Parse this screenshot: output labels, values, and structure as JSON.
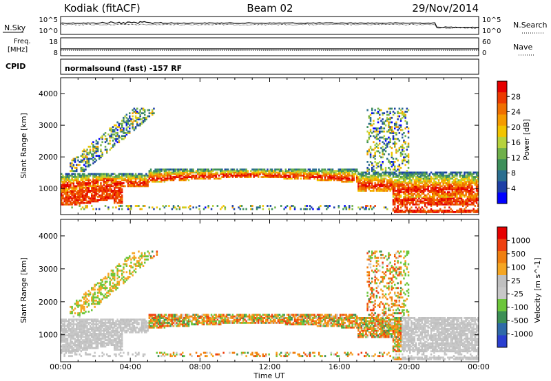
{
  "header": {
    "station": "Kodiak (fitACF)",
    "beam": "Beam 02",
    "date": "29/Nov/2014"
  },
  "top_panels": {
    "nsky_label": "N.Sky",
    "nsearch_label": "N.Search",
    "noise_ticks_left": [
      "10^5",
      "10^0"
    ],
    "noise_ticks_right": [
      "10^5",
      "10^0"
    ],
    "freq_label_1": "Freq.",
    "freq_label_2": "[MHz]",
    "freq_ticks": [
      "18",
      "8"
    ],
    "nave_label": "Nave",
    "nave_ticks": [
      "60",
      "0"
    ],
    "cpid_label": "CPID",
    "cpid_text": "normalsound (fast) -157 RF"
  },
  "colors": {
    "power_scale": [
      "#0000ff",
      "#1d3fa6",
      "#2a6e8f",
      "#3d8f5a",
      "#6fb04a",
      "#b6d23c",
      "#f2c400",
      "#f59b00",
      "#ef6f00",
      "#ec3a00",
      "#e60000"
    ],
    "velocity_scale": [
      "#2a3fd0",
      "#2f6aa8",
      "#3c8f55",
      "#6cc63a",
      "#c8c8c8",
      "#c0c0c0",
      "#f5a623",
      "#f07f10",
      "#ee4010",
      "#e60000"
    ]
  },
  "chart_data": [
    {
      "type": "heatmap",
      "name": "power",
      "ylabel": "Slant Range [km]",
      "xlabel": "Time UT",
      "x_ticks": [
        "00:00",
        "04:00",
        "08:00",
        "12:00",
        "16:00",
        "20:00",
        "00:00"
      ],
      "y_ticks": [
        "1000",
        "2000",
        "3000",
        "4000"
      ],
      "ylim": [
        180,
        4500
      ],
      "xlim_hours": [
        0,
        24
      ],
      "colorbar_label": "Power [dB]",
      "colorbar_ticks": [
        "4",
        "8",
        "12",
        "16",
        "20",
        "24",
        "28"
      ],
      "colorbar_range": [
        0,
        30
      ]
    },
    {
      "type": "heatmap",
      "name": "velocity",
      "ylabel": "Slant Range [km]",
      "xlabel": "Time UT",
      "x_ticks": [
        "00:00",
        "04:00",
        "08:00",
        "12:00",
        "16:00",
        "20:00",
        "00:00"
      ],
      "y_ticks": [
        "1000",
        "2000",
        "3000",
        "4000"
      ],
      "ylim": [
        180,
        4500
      ],
      "xlim_hours": [
        0,
        24
      ],
      "colorbar_label": "Velocity [m s^-1]",
      "colorbar_ticks": [
        "1000",
        "500",
        "100",
        "25",
        "-25",
        "-100",
        "-500",
        "-1000"
      ]
    }
  ]
}
